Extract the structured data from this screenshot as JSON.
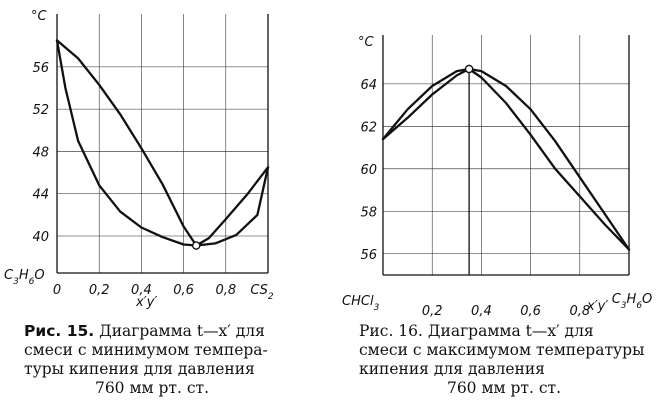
{
  "chart_data": [
    {
      "type": "line",
      "ylabel_unit": "°C",
      "left_component": "C3H6O",
      "right_component": "CS2",
      "x_axis_symbols": "x′y′",
      "xlim": [
        0,
        1
      ],
      "ylim": [
        36.5,
        61
      ],
      "grid": true,
      "x_ticks": [
        {
          "value": 0,
          "label": "0"
        },
        {
          "value": 0.2,
          "label": "0,2"
        },
        {
          "value": 0.4,
          "label": "0,4"
        },
        {
          "value": 0.6,
          "label": "0,6"
        },
        {
          "value": 0.8,
          "label": "0,8"
        }
      ],
      "y_ticks": [
        40,
        44,
        48,
        52,
        56
      ],
      "series": [
        {
          "x": [
            0,
            0.1,
            0.2,
            0.3,
            0.4,
            0.5,
            0.6,
            0.66,
            0.72,
            0.8,
            0.9,
            1.0
          ],
          "y": [
            58.5,
            56.8,
            54.3,
            51.5,
            48.3,
            44.9,
            40.9,
            39.1,
            39.8,
            41.6,
            43.9,
            46.5
          ]
        },
        {
          "x": [
            0,
            0.04,
            0.1,
            0.2,
            0.3,
            0.4,
            0.5,
            0.6,
            0.66,
            0.75,
            0.85,
            0.95,
            1.0
          ],
          "y": [
            58.5,
            54.0,
            49.0,
            44.8,
            42.3,
            40.8,
            39.9,
            39.2,
            39.1,
            39.3,
            40.1,
            42.0,
            46.5
          ]
        }
      ],
      "azeotrope": {
        "x": 0.66,
        "y": 39.1
      },
      "caption": {
        "label": "Рис. 15.",
        "lines": [
          "Диаграмма t—x′ для",
          "смеси с минимумом темпера-",
          "туры кипения для давления",
          "760 мм рт. ст."
        ]
      }
    },
    {
      "type": "line",
      "ylabel_unit": "°C",
      "left_component": "CHCl3",
      "right_component": "C3H6O",
      "x_axis_symbols": "x′y′",
      "xlim": [
        0,
        1
      ],
      "ylim": [
        55,
        66.3
      ],
      "grid": true,
      "x_ticks": [
        {
          "value": 0.2,
          "label": "0,2"
        },
        {
          "value": 0.4,
          "label": "0,4"
        },
        {
          "value": 0.6,
          "label": "0,6"
        },
        {
          "value": 0.8,
          "label": "0,8"
        }
      ],
      "y_ticks": [
        56,
        58,
        60,
        62,
        64
      ],
      "series": [
        {
          "x": [
            0,
            0.1,
            0.2,
            0.3,
            0.35,
            0.4,
            0.5,
            0.6,
            0.7,
            0.8,
            0.9,
            1.0
          ],
          "y": [
            61.4,
            62.8,
            63.9,
            64.6,
            64.7,
            64.3,
            63.1,
            61.6,
            60.0,
            58.7,
            57.4,
            56.2
          ]
        },
        {
          "x": [
            0,
            0.1,
            0.2,
            0.3,
            0.35,
            0.4,
            0.5,
            0.6,
            0.7,
            0.8,
            0.9,
            1.0
          ],
          "y": [
            61.4,
            62.4,
            63.5,
            64.4,
            64.7,
            64.6,
            63.9,
            62.8,
            61.3,
            59.6,
            57.9,
            56.2
          ]
        }
      ],
      "azeotrope": {
        "x": 0.35,
        "y": 64.7
      },
      "caption": {
        "label": "Рис. 16.",
        "lines": [
          "Диаграмма t—x′ для",
          "смеси с максимумом температуры",
          "кипения для давления",
          "760 мм рт. ст."
        ]
      }
    }
  ]
}
